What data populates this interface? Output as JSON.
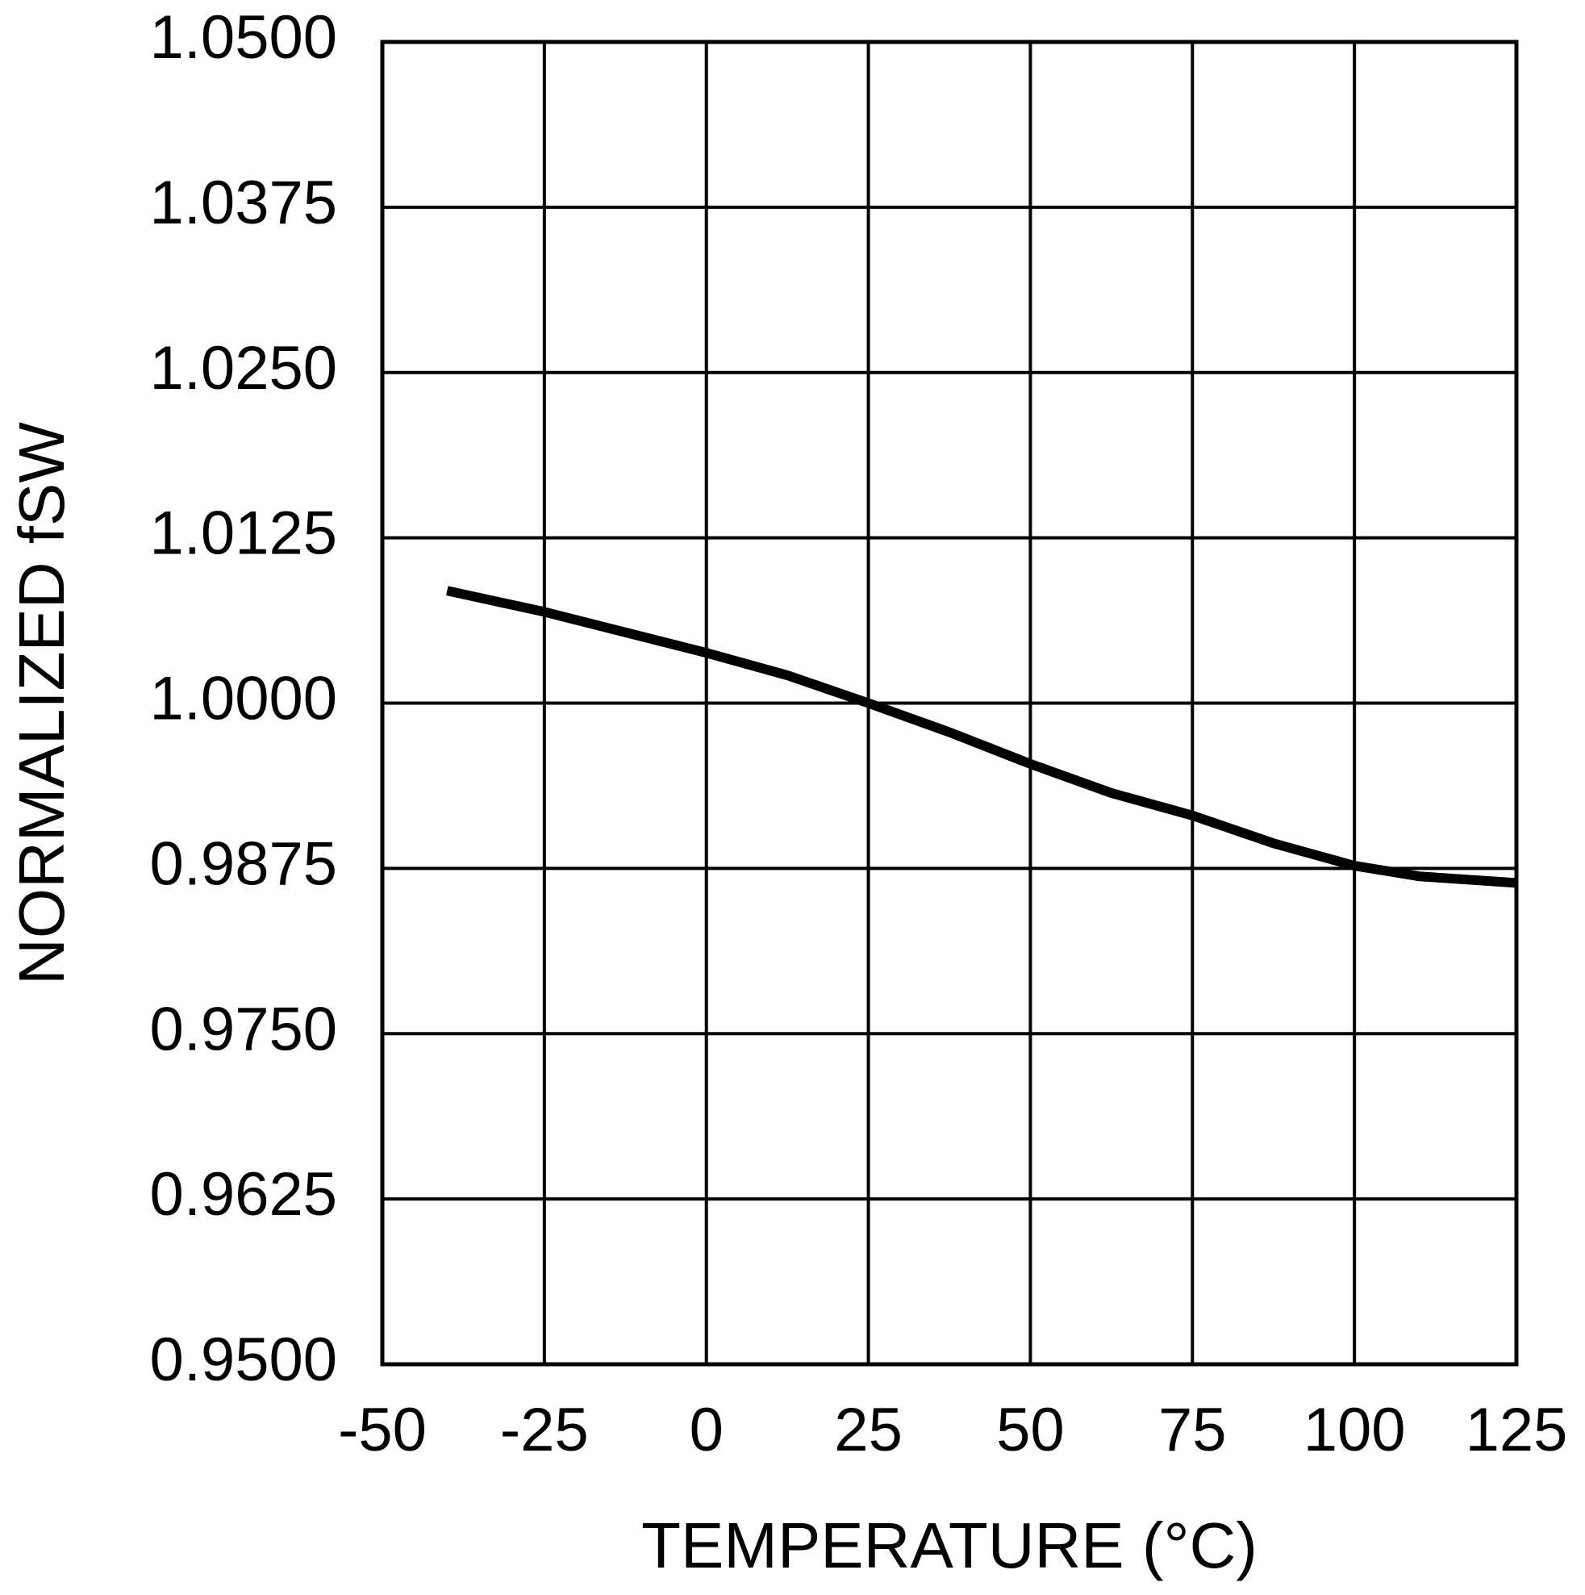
{
  "chart_data": {
    "type": "line",
    "x_label": "TEMPERATURE (°C)",
    "y_label": "NORMALIZED fSW",
    "xlim": [
      -50,
      125
    ],
    "xticks": [
      -50,
      -25,
      0,
      25,
      50,
      75,
      100,
      125
    ],
    "ylim": [
      0.95,
      1.05
    ],
    "yticks": [
      {
        "value": 0.95,
        "label": "0.9500"
      },
      0.9625,
      {
        "value": 0.975,
        "label": "0.9750"
      },
      0.9875,
      {
        "value": 1.0,
        "label": "1.0000"
      },
      1.0125,
      {
        "value": 1.025,
        "label": "1.0250"
      },
      1.0375,
      {
        "value": 1.05,
        "label": "1.0500"
      }
    ],
    "grid": true,
    "series": [
      {
        "color": "#000000",
        "x": [
          -40,
          -25,
          0,
          12.5,
          25,
          37.5,
          50,
          62.5,
          75,
          87.5,
          100,
          110,
          125
        ],
        "values": [
          1.0085,
          1.0069,
          1.0038,
          1.0021,
          1.0,
          0.9978,
          0.9954,
          0.9932,
          0.9915,
          0.9894,
          0.9877,
          0.9869,
          0.9864
        ]
      }
    ]
  }
}
